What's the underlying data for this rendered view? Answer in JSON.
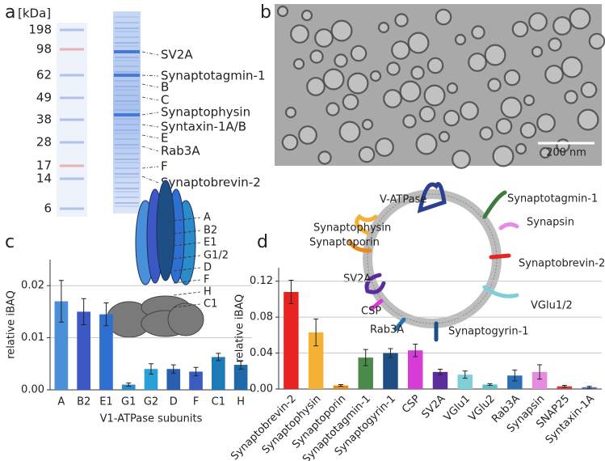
{
  "panel_labels": [
    "a",
    "b",
    "c",
    "d"
  ],
  "gel": {
    "unit": "[kDa]",
    "markers": [
      {
        "label": "198",
        "color": "#222222"
      },
      {
        "label": "98",
        "color": "#e8552a"
      },
      {
        "label": "62",
        "color": "#222222"
      },
      {
        "label": "49",
        "color": "#222222"
      },
      {
        "label": "38",
        "color": "#222222"
      },
      {
        "label": "28",
        "color": "#222222"
      },
      {
        "label": "17",
        "color": "#e8552a"
      },
      {
        "label": "14",
        "color": "#222222"
      },
      {
        "label": "6",
        "color": "#222222"
      }
    ],
    "bands": [
      {
        "label": "SV2A",
        "color": "#3d3dbf"
      },
      {
        "label": "Synaptotagmin-1",
        "color": "#3f8a3f"
      },
      {
        "label": "B",
        "color": "#3b58c4"
      },
      {
        "label": "C",
        "color": "#2a7fc8"
      },
      {
        "label": "Synaptophysin",
        "color": "#f4b133"
      },
      {
        "label": "Syntaxin-1A/B",
        "color": "#111111"
      },
      {
        "label": "E",
        "color": "#2f6fd0"
      },
      {
        "label": "Rab3A",
        "color": "#2a6fb5"
      },
      {
        "label": "F",
        "color": "#3a5cc0"
      },
      {
        "label": "Synaptobrevin-2",
        "color": "#e8231f"
      }
    ]
  },
  "em": {
    "scale_bar": "200 nm"
  },
  "atpase_labels": [
    "A",
    "B2",
    "E1",
    "G1/2",
    "D",
    "F",
    "H",
    "C1"
  ],
  "vesicle_labels": [
    "V-ATPase",
    "Synaptophysin",
    "Synaptotagmin-1",
    "Synapsin",
    "Synaptoporin",
    "Synaptobrevin-2",
    "SV2A",
    "VGlu1/2",
    "CSP",
    "Rab3A",
    "Synaptogyrin-1"
  ],
  "chart_data": [
    {
      "type": "bar",
      "y_label": "relative iBAQ",
      "x_label": "V1-ATPase subunits",
      "categories": [
        "A",
        "B2",
        "E1",
        "G1",
        "G2",
        "D",
        "F",
        "C1",
        "H"
      ],
      "values": [
        0.017,
        0.015,
        0.0145,
        0.001,
        0.004,
        0.004,
        0.0035,
        0.0063,
        0.0048
      ],
      "errors": [
        0.004,
        0.0025,
        0.0022,
        0.0003,
        0.001,
        0.0008,
        0.0008,
        0.0007,
        0.0008
      ],
      "colors": [
        "#4a8fd9",
        "#3b58c4",
        "#2f6fd0",
        "#2a8cc9",
        "#2aa0d8",
        "#2a5fb0",
        "#3a5cc0",
        "#1f7ab8",
        "#1e6aa8"
      ],
      "ylim": [
        0,
        0.025
      ],
      "yticks": [
        {
          "value": 0,
          "label": "0.00"
        },
        {
          "value": 0.01,
          "label": "0.01"
        },
        {
          "value": 0.02,
          "label": "0.02"
        }
      ],
      "grid": true
    },
    {
      "type": "bar",
      "y_label": "relative iBAQ",
      "categories": [
        "Synaptobrevin-2",
        "Synaptophysin",
        "Synaptoporin",
        "Synaptotagmin-1",
        "Synaptogyrin-1",
        "CSP",
        "SV2A",
        "VGlu1",
        "VGlu2",
        "Rab3A",
        "Synapsin",
        "SNAP25",
        "Syntaxin-1A"
      ],
      "values": [
        0.108,
        0.063,
        0.004,
        0.035,
        0.04,
        0.043,
        0.019,
        0.016,
        0.005,
        0.015,
        0.019,
        0.003,
        0.002
      ],
      "errors": [
        0.013,
        0.015,
        0.001,
        0.009,
        0.005,
        0.007,
        0.003,
        0.004,
        0.001,
        0.006,
        0.008,
        0.001,
        0.001
      ],
      "colors": [
        "#e8231f",
        "#f4b133",
        "#e88a1a",
        "#4a8a4a",
        "#1d4f85",
        "#d63cd6",
        "#5a2d9a",
        "#7fd0d6",
        "#5bc0c8",
        "#2a6fb5",
        "#e78be0",
        "#d23a3a",
        "#4a6fb5"
      ],
      "ylim": [
        0,
        0.135
      ],
      "yticks": [
        {
          "value": 0,
          "label": "0.00"
        },
        {
          "value": 0.04,
          "label": "0.04"
        },
        {
          "value": 0.08,
          "label": "0.08"
        },
        {
          "value": 0.12,
          "label": "0.12"
        }
      ],
      "grid": true
    }
  ]
}
